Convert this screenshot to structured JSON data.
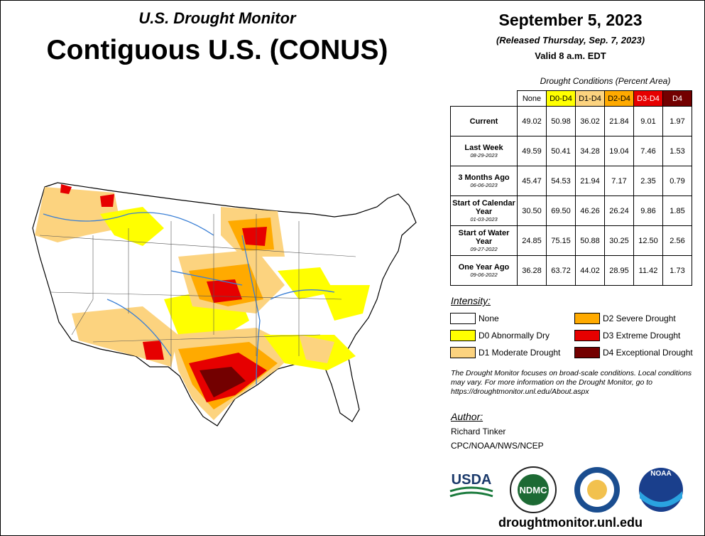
{
  "header": {
    "subtitle": "U.S. Drought Monitor",
    "title": "Contiguous U.S. (CONUS)"
  },
  "date": {
    "main": "September 5, 2023",
    "released": "(Released Thursday, Sep. 7, 2023)",
    "valid": "Valid 8 a.m. EDT"
  },
  "table": {
    "caption": "Drought Conditions (Percent Area)",
    "columns": [
      {
        "label": "None",
        "color": "#ffffff"
      },
      {
        "label": "D0-D4",
        "color": "#ffff00"
      },
      {
        "label": "D1-D4",
        "color": "#fcd37f"
      },
      {
        "label": "D2-D4",
        "color": "#ffaa00"
      },
      {
        "label": "D3-D4",
        "color": "#e60000"
      },
      {
        "label": "D4",
        "color": "#730000"
      }
    ],
    "rows": [
      {
        "label": "Current",
        "values": [
          "49.02",
          "50.98",
          "36.02",
          "21.84",
          "9.01",
          "1.97"
        ]
      },
      {
        "label": "Last Week",
        "date": "08-29-2023",
        "values": [
          "49.59",
          "50.41",
          "34.28",
          "19.04",
          "7.46",
          "1.53"
        ]
      },
      {
        "label": "3 Months Ago",
        "date": "06-06-2023",
        "values": [
          "45.47",
          "54.53",
          "21.94",
          "7.17",
          "2.35",
          "0.79"
        ]
      },
      {
        "label": "Start of Calendar Year",
        "date": "01-03-2023",
        "values": [
          "30.50",
          "69.50",
          "46.26",
          "26.24",
          "9.86",
          "1.85"
        ]
      },
      {
        "label": "Start of Water Year",
        "date": "09-27-2022",
        "values": [
          "24.85",
          "75.15",
          "50.88",
          "30.25",
          "12.50",
          "2.56"
        ]
      },
      {
        "label": "One Year Ago",
        "date": "09-06-2022",
        "values": [
          "36.28",
          "63.72",
          "44.02",
          "28.95",
          "11.42",
          "1.73"
        ]
      }
    ]
  },
  "intensity": {
    "heading": "Intensity:",
    "items": [
      {
        "label": "None",
        "color": "#ffffff"
      },
      {
        "label": "D0 Abnormally Dry",
        "color": "#ffff00"
      },
      {
        "label": "D1 Moderate Drought",
        "color": "#fcd37f"
      },
      {
        "label": "D2 Severe Drought",
        "color": "#ffaa00"
      },
      {
        "label": "D3 Extreme Drought",
        "color": "#e60000"
      },
      {
        "label": "D4 Exceptional Drought",
        "color": "#730000"
      }
    ]
  },
  "note": "The Drought Monitor focuses on broad-scale conditions. Local conditions may vary. For more information on the Drought Monitor, go to https://droughtmonitor.unl.edu/About.aspx",
  "author": {
    "heading": "Author:",
    "name": "Richard Tinker",
    "org": "CPC/NOAA/NWS/NCEP"
  },
  "logos": [
    "USDA",
    "NDMC",
    "NOAA"
  ],
  "url": "droughtmonitor.unl.edu"
}
